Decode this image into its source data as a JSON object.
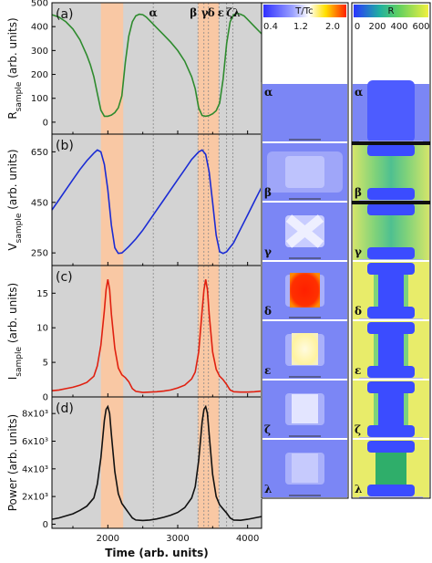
{
  "chart_data": [
    {
      "type": "line",
      "panel_tag": "(a)",
      "ylabel_base": "R",
      "ylabel_sub": "sample",
      "ylabel_unit": " (arb. units)",
      "ylim": [
        -50,
        500
      ],
      "yticks": [
        0,
        100,
        200,
        300,
        400,
        500
      ],
      "ytick_labels": [
        "0",
        "100",
        "200",
        "300",
        "400",
        "500"
      ],
      "xlim": [
        1200,
        4200
      ],
      "color": "#2e8b2e",
      "x": [
        1200,
        1300,
        1400,
        1500,
        1600,
        1700,
        1750,
        1800,
        1850,
        1900,
        1950,
        2000,
        2050,
        2100,
        2150,
        2200,
        2250,
        2300,
        2350,
        2400,
        2450,
        2500,
        2550,
        2600,
        2650,
        2700,
        2800,
        2900,
        3000,
        3100,
        3200,
        3250,
        3300,
        3350,
        3400,
        3450,
        3500,
        3550,
        3600,
        3650,
        3700,
        3750,
        3800,
        3850,
        3900,
        3950,
        4000,
        4100,
        4200
      ],
      "y": [
        450,
        440,
        420,
        390,
        345,
        280,
        240,
        190,
        120,
        50,
        25,
        25,
        30,
        40,
        60,
        110,
        250,
        360,
        420,
        445,
        452,
        450,
        440,
        425,
        410,
        395,
        365,
        335,
        300,
        255,
        190,
        140,
        60,
        28,
        25,
        28,
        35,
        48,
        80,
        180,
        330,
        420,
        450,
        455,
        452,
        445,
        430,
        400,
        370
      ]
    },
    {
      "type": "line",
      "panel_tag": "(b)",
      "ylabel_base": "V",
      "ylabel_sub": "sample",
      "ylabel_unit": " (arb. units)",
      "ylim": [
        200,
        720
      ],
      "yticks": [
        250,
        450,
        650
      ],
      "ytick_labels": [
        "250",
        "450",
        "650"
      ],
      "xlim": [
        1200,
        4200
      ],
      "color": "#1a2bd4",
      "x": [
        1200,
        1300,
        1400,
        1500,
        1600,
        1700,
        1800,
        1850,
        1900,
        1950,
        2000,
        2050,
        2100,
        2150,
        2200,
        2250,
        2300,
        2400,
        2500,
        2600,
        2700,
        2800,
        2900,
        3000,
        3100,
        3200,
        3300,
        3350,
        3400,
        3450,
        3500,
        3550,
        3600,
        3650,
        3700,
        3800,
        3900,
        4000,
        4100,
        4200
      ],
      "y": [
        420,
        460,
        500,
        540,
        580,
        615,
        645,
        657,
        650,
        600,
        500,
        360,
        270,
        248,
        250,
        262,
        275,
        305,
        340,
        380,
        420,
        460,
        500,
        540,
        580,
        620,
        650,
        657,
        640,
        570,
        450,
        320,
        255,
        248,
        255,
        290,
        345,
        400,
        455,
        510
      ]
    },
    {
      "type": "line",
      "panel_tag": "(c)",
      "ylabel_base": "I",
      "ylabel_sub": "sample",
      "ylabel_unit": " (arb. units)",
      "ylim": [
        0,
        19
      ],
      "yticks": [
        0,
        5,
        10,
        15
      ],
      "ytick_labels": [
        "0",
        "5",
        "10",
        "15"
      ],
      "xlim": [
        1200,
        4200
      ],
      "color": "#e02010",
      "x": [
        1200,
        1300,
        1400,
        1500,
        1600,
        1700,
        1800,
        1850,
        1900,
        1950,
        1975,
        2000,
        2025,
        2050,
        2100,
        2150,
        2200,
        2250,
        2300,
        2350,
        2400,
        2500,
        2600,
        2700,
        2800,
        2900,
        3000,
        3100,
        3200,
        3250,
        3300,
        3350,
        3375,
        3400,
        3425,
        3450,
        3500,
        3550,
        3600,
        3650,
        3700,
        3750,
        3800,
        3900,
        4000,
        4100,
        4200
      ],
      "y": [
        0.9,
        1.0,
        1.2,
        1.4,
        1.7,
        2.1,
        3.0,
        4.5,
        7.5,
        12.5,
        15.5,
        17.0,
        15.5,
        12.0,
        7.0,
        4.2,
        3.2,
        2.8,
        2.2,
        1.2,
        0.8,
        0.65,
        0.7,
        0.75,
        0.85,
        1.0,
        1.3,
        1.7,
        2.6,
        3.6,
        6.5,
        12.5,
        15.5,
        17.0,
        15.5,
        12.0,
        6.5,
        4.0,
        3.0,
        2.5,
        1.8,
        1.0,
        0.75,
        0.7,
        0.7,
        0.75,
        0.85
      ]
    },
    {
      "type": "line",
      "panel_tag": "(d)",
      "ylabel_base": "Power (arb. units)",
      "ylabel_sub": "",
      "ylabel_unit": "",
      "ylim": [
        -300,
        9200
      ],
      "yticks": [
        0,
        2000,
        4000,
        6000,
        8000
      ],
      "ytick_labels": [
        "0",
        "2x10³",
        "4x10³",
        "6x10³",
        "8x10³"
      ],
      "xlim": [
        1200,
        4200
      ],
      "xticks": [
        2000,
        3000,
        4000
      ],
      "xtick_labels": [
        "2000",
        "3000",
        "4000"
      ],
      "xlabel": "Time (arb. units)",
      "color": "#111111",
      "x": [
        1200,
        1300,
        1400,
        1500,
        1600,
        1700,
        1800,
        1850,
        1900,
        1950,
        1975,
        2000,
        2025,
        2050,
        2100,
        2150,
        2200,
        2250,
        2300,
        2350,
        2400,
        2500,
        2600,
        2700,
        2800,
        2900,
        3000,
        3100,
        3200,
        3250,
        3300,
        3350,
        3375,
        3400,
        3425,
        3450,
        3500,
        3550,
        3600,
        3650,
        3700,
        3750,
        3800,
        3900,
        4000,
        4100,
        4200
      ],
      "y": [
        350,
        450,
        600,
        750,
        1000,
        1300,
        1900,
        2900,
        4800,
        7500,
        8300,
        8500,
        8000,
        6500,
        3800,
        2200,
        1500,
        1150,
        800,
        450,
        300,
        270,
        300,
        380,
        500,
        650,
        850,
        1200,
        1900,
        2700,
        4600,
        7400,
        8300,
        8500,
        8000,
        6500,
        3600,
        2000,
        1400,
        1100,
        800,
        450,
        300,
        280,
        350,
        450,
        550
      ]
    }
  ],
  "events": {
    "labels": [
      "α",
      "β",
      "γ",
      "δ",
      "ε",
      "ζ",
      "λ"
    ],
    "times": [
      2650,
      3290,
      3375,
      3440,
      3590,
      3700,
      3790
    ]
  },
  "shaded_regions": [
    [
      1900,
      2220
    ],
    [
      3290,
      3590
    ]
  ],
  "map_columns": {
    "left_title": "T/Tc",
    "left_ticks": [
      "0.4",
      "1.2",
      "2.0"
    ],
    "right_title": "R",
    "right_ticks": [
      "0",
      "200",
      "400",
      "600"
    ],
    "row_labels": [
      "α",
      "β",
      "γ",
      "δ",
      "ε",
      "ζ",
      "λ"
    ]
  },
  "colors": {
    "background_band": "#d3d3d3",
    "shade": "#f9c8a4",
    "map_blue": "#7b86f5",
    "map_green": "#6fd07a",
    "map_yellow": "#e8ec6a"
  }
}
